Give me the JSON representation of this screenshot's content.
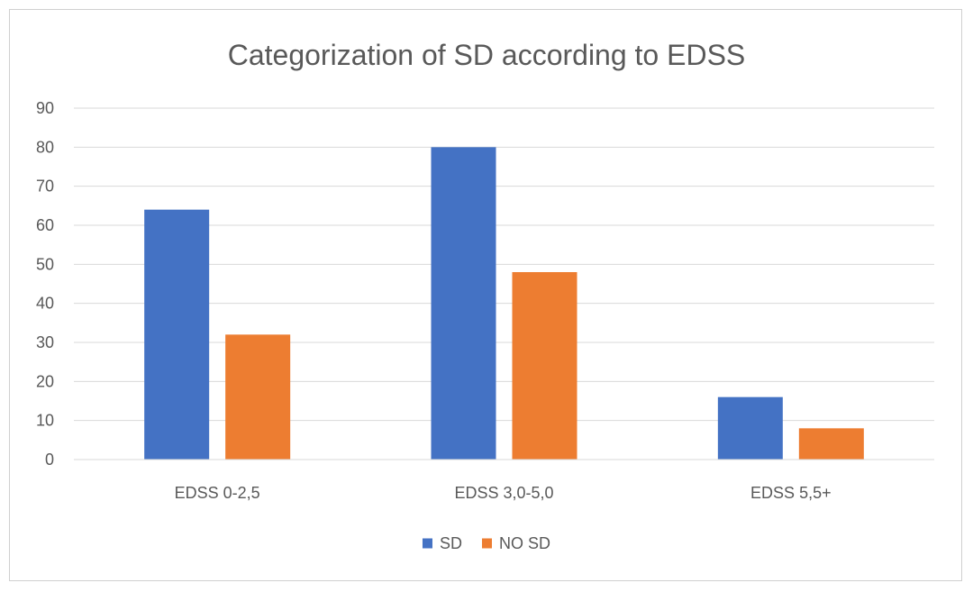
{
  "chart_data": {
    "type": "bar",
    "title": "Categorization of SD according to EDSS",
    "xlabel": "",
    "ylabel": "",
    "categories": [
      "EDSS 0-2,5",
      "EDSS 3,0-5,0",
      "EDSS 5,5+"
    ],
    "series": [
      {
        "name": "SD",
        "values": [
          64,
          80,
          16
        ],
        "color": "#4472C4"
      },
      {
        "name": "NO SD",
        "values": [
          32,
          48,
          8
        ],
        "color": "#ED7D31"
      }
    ],
    "ylim": [
      0,
      90
    ],
    "yticks": [
      0,
      10,
      20,
      30,
      40,
      50,
      60,
      70,
      80,
      90
    ],
    "grid": true,
    "legend_position": "bottom"
  }
}
